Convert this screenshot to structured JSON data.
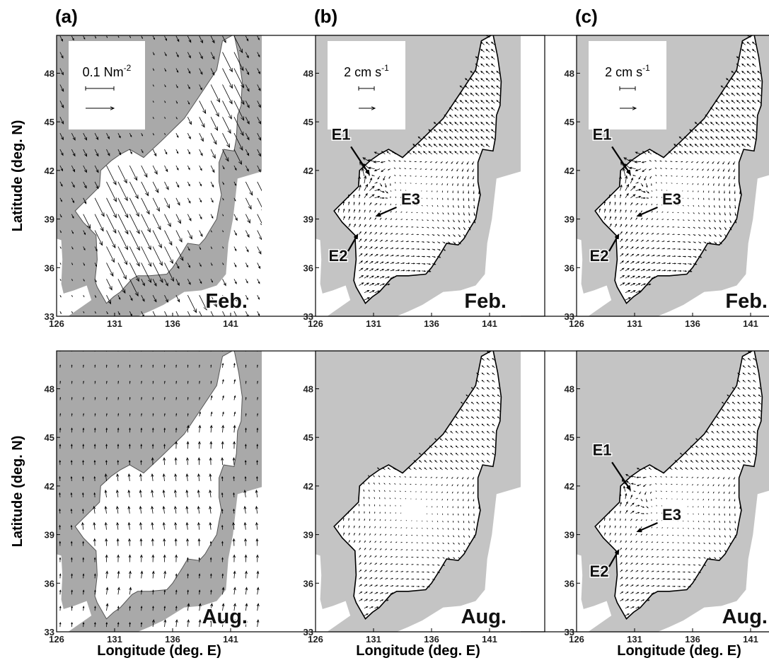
{
  "axes": {
    "xticks": [
      126,
      131,
      136,
      141
    ],
    "yticks": [
      33,
      36,
      39,
      42,
      45,
      48
    ],
    "xlabel": "Longitude (deg. E)",
    "ylabel": "Latitude (deg. N)"
  },
  "panels": [
    {
      "label": "(a)",
      "scale": {
        "text": "0.1 Nm",
        "sup": "-2"
      },
      "maps": [
        {
          "season": "Feb.",
          "eddies": []
        },
        {
          "season": "Aug.",
          "eddies": []
        }
      ]
    },
    {
      "label": "(b)",
      "scale": {
        "text": "2 cm s",
        "sup": "-1"
      },
      "maps": [
        {
          "season": "Feb.",
          "eddies": [
            "E1",
            "E3",
            "E2"
          ]
        },
        {
          "season": "Aug.",
          "eddies": []
        }
      ]
    },
    {
      "label": "(c)",
      "scale": {
        "text": "2 cm s",
        "sup": "-1"
      },
      "maps": [
        {
          "season": "Feb.",
          "eddies": [
            "E1",
            "E3",
            "E2"
          ]
        },
        {
          "season": "Aug.",
          "eddies": [
            "E1",
            "E3",
            "E2"
          ]
        }
      ]
    }
  ]
}
